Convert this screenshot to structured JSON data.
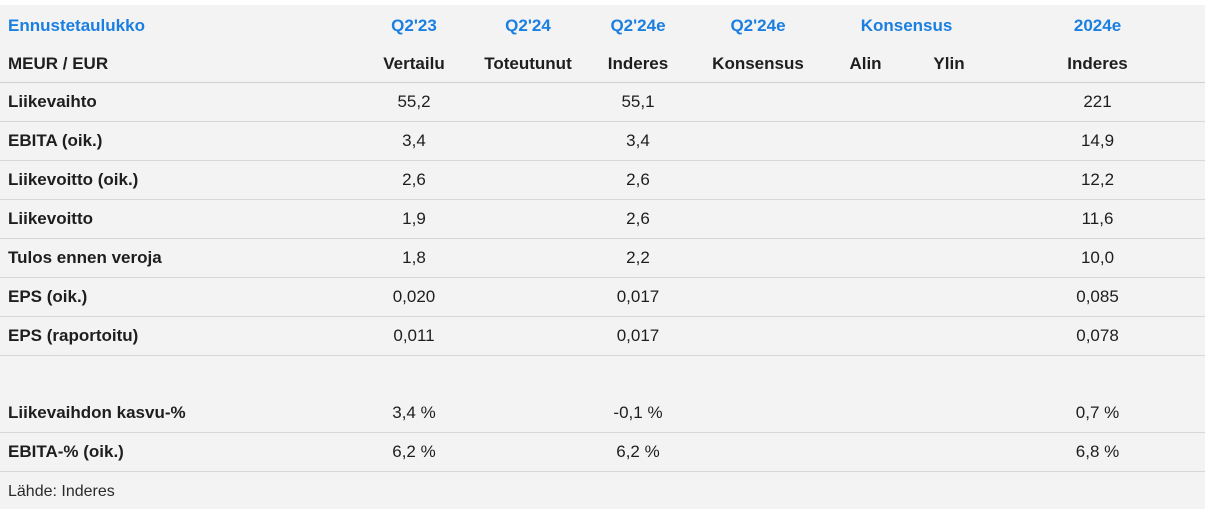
{
  "header1": {
    "title": "Ennustetaulukko",
    "c1": "Q2'23",
    "c2": "Q2'24",
    "c3": "Q2'24e",
    "c4": "Q2'24e",
    "consensus": "Konsensus",
    "c7": "2024e"
  },
  "header2": {
    "unit": "MEUR / EUR",
    "c1": "Vertailu",
    "c2": "Toteutunut",
    "c3": "Inderes",
    "c4": "Konsensus",
    "c5": "Alin",
    "c6": "Ylin",
    "c7": "Inderes"
  },
  "rows": [
    {
      "label": "Liikevaihto",
      "q223": "55,2",
      "q224": "",
      "q224e_inderes": "55,1",
      "q224e_cons": "",
      "alin": "",
      "ylin": "",
      "y2024e": "221"
    },
    {
      "label": "EBITA (oik.)",
      "q223": "3,4",
      "q224": "",
      "q224e_inderes": "3,4",
      "q224e_cons": "",
      "alin": "",
      "ylin": "",
      "y2024e": "14,9"
    },
    {
      "label": "Liikevoitto (oik.)",
      "q223": "2,6",
      "q224": "",
      "q224e_inderes": "2,6",
      "q224e_cons": "",
      "alin": "",
      "ylin": "",
      "y2024e": "12,2"
    },
    {
      "label": "Liikevoitto",
      "q223": "1,9",
      "q224": "",
      "q224e_inderes": "2,6",
      "q224e_cons": "",
      "alin": "",
      "ylin": "",
      "y2024e": "11,6"
    },
    {
      "label": "Tulos ennen veroja",
      "q223": "1,8",
      "q224": "",
      "q224e_inderes": "2,2",
      "q224e_cons": "",
      "alin": "",
      "ylin": "",
      "y2024e": "10,0"
    },
    {
      "label": "EPS (oik.)",
      "q223": "0,020",
      "q224": "",
      "q224e_inderes": "0,017",
      "q224e_cons": "",
      "alin": "",
      "ylin": "",
      "y2024e": "0,085"
    },
    {
      "label": "EPS (raportoitu)",
      "q223": "0,011",
      "q224": "",
      "q224e_inderes": "0,017",
      "q224e_cons": "",
      "alin": "",
      "ylin": "",
      "y2024e": "0,078"
    }
  ],
  "rows2": [
    {
      "label": "Liikevaihdon kasvu-%",
      "q223": "3,4 %",
      "q224": "",
      "q224e_inderes": "-0,1 %",
      "q224e_cons": "",
      "alin": "",
      "ylin": "",
      "y2024e": "0,7 %"
    },
    {
      "label": "EBITA-% (oik.)",
      "q223": "6,2 %",
      "q224": "",
      "q224e_inderes": "6,2 %",
      "q224e_cons": "",
      "alin": "",
      "ylin": "",
      "y2024e": "6,8 %"
    }
  ],
  "source": "Lähde: Inderes",
  "colors": {
    "accent": "#1a7fe0",
    "panel_bg": "#f3f3f3",
    "divider": "#d7d7d7"
  }
}
